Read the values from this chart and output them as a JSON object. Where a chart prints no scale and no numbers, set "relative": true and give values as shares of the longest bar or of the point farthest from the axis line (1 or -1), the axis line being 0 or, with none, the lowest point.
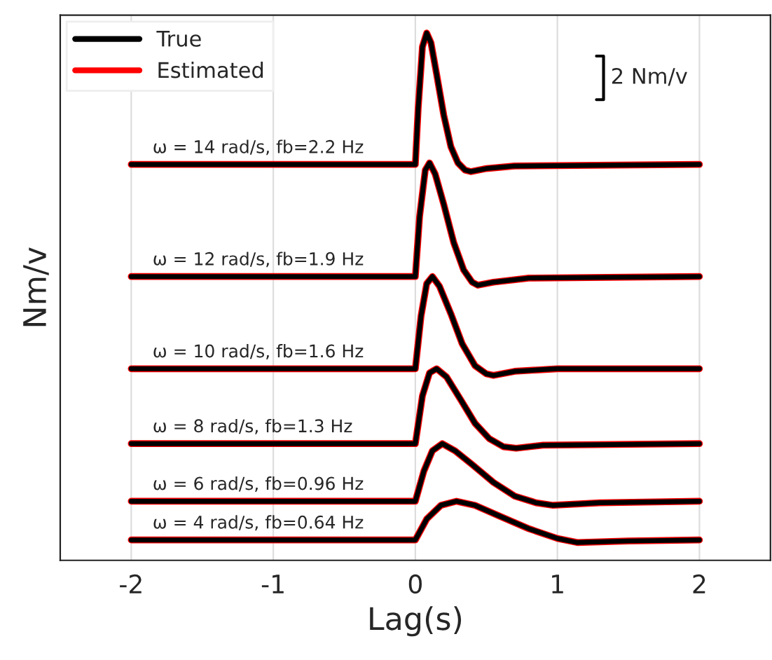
{
  "chart_data": {
    "type": "line",
    "xlabel": "Lag(s)",
    "ylabel": "Nm/v",
    "relative": true,
    "xlim": [
      -2.5,
      2.5
    ],
    "xticks": [
      -2,
      -1,
      0,
      1,
      2
    ],
    "grid": "x",
    "legend": "top left",
    "tick_labels": "x",
    "marker": "none",
    "line_style": "solid",
    "series": [
      {
        "name": "True",
        "color": "#000000",
        "x": [
          -2,
          0,
          0.02,
          0.05,
          0.08,
          0.11,
          0.15,
          0.2,
          0.25,
          0.3,
          0.35,
          0.39,
          0.5,
          0.7,
          2
        ],
        "values": [
          0.742,
          0.742,
          0.852,
          0.973,
          1.0,
          0.981,
          0.919,
          0.839,
          0.777,
          0.745,
          0.731,
          0.728,
          0.734,
          0.739,
          0.742
        ]
      },
      {
        "color": "#000000",
        "x": [
          -2,
          0,
          0.03,
          0.07,
          0.1,
          0.14,
          0.2,
          0.27,
          0.34,
          0.4,
          0.44,
          0.55,
          0.8,
          2
        ],
        "values": [
          0.522,
          0.522,
          0.64,
          0.731,
          0.745,
          0.723,
          0.664,
          0.589,
          0.535,
          0.511,
          0.505,
          0.511,
          0.519,
          0.522
        ]
      },
      {
        "color": "#000000",
        "x": [
          -2,
          0,
          0.04,
          0.08,
          0.12,
          0.17,
          0.25,
          0.33,
          0.42,
          0.5,
          0.55,
          0.7,
          1.0,
          2
        ],
        "values": [
          0.341,
          0.341,
          0.444,
          0.508,
          0.522,
          0.503,
          0.449,
          0.39,
          0.347,
          0.331,
          0.328,
          0.336,
          0.341,
          0.341
        ]
      },
      {
        "color": "#000000",
        "x": [
          -2,
          0,
          0.05,
          0.1,
          0.15,
          0.22,
          0.32,
          0.42,
          0.52,
          0.62,
          0.71,
          0.9,
          2
        ],
        "values": [
          0.194,
          0.194,
          0.288,
          0.333,
          0.341,
          0.325,
          0.28,
          0.234,
          0.204,
          0.188,
          0.185,
          0.191,
          0.194
        ]
      },
      {
        "color": "#000000",
        "x": [
          -2,
          0,
          0.06,
          0.12,
          0.19,
          0.28,
          0.4,
          0.55,
          0.7,
          0.85,
          0.97,
          1.3,
          2
        ],
        "values": [
          0.081,
          0.081,
          0.14,
          0.18,
          0.194,
          0.18,
          0.153,
          0.118,
          0.091,
          0.078,
          0.073,
          0.078,
          0.081
        ]
      },
      {
        "color": "#000000",
        "x": [
          -2,
          0,
          0.08,
          0.18,
          0.29,
          0.42,
          0.6,
          0.8,
          1.0,
          1.14,
          1.5,
          2
        ],
        "values": [
          0.005,
          0.005,
          0.046,
          0.073,
          0.081,
          0.073,
          0.051,
          0.027,
          0.008,
          0.0,
          0.003,
          0.005
        ]
      },
      {
        "name": "Estimated",
        "color": "#ff0000",
        "x": [
          -2,
          0,
          0.02,
          0.05,
          0.08,
          0.11,
          0.15,
          0.2,
          0.25,
          0.3,
          0.35,
          0.39,
          0.5,
          0.7,
          2
        ],
        "values": [
          0.742,
          0.742,
          0.852,
          0.973,
          1.0,
          0.981,
          0.919,
          0.839,
          0.777,
          0.745,
          0.731,
          0.728,
          0.734,
          0.739,
          0.742
        ]
      },
      {
        "color": "#ff0000",
        "x": [
          -2,
          0,
          0.03,
          0.07,
          0.1,
          0.14,
          0.2,
          0.27,
          0.34,
          0.4,
          0.44,
          0.55,
          0.8,
          2
        ],
        "values": [
          0.522,
          0.522,
          0.64,
          0.731,
          0.745,
          0.723,
          0.664,
          0.589,
          0.535,
          0.511,
          0.505,
          0.511,
          0.519,
          0.522
        ]
      },
      {
        "color": "#ff0000",
        "x": [
          -2,
          0,
          0.04,
          0.08,
          0.12,
          0.17,
          0.25,
          0.33,
          0.42,
          0.5,
          0.55,
          0.7,
          1.0,
          2
        ],
        "values": [
          0.341,
          0.341,
          0.444,
          0.508,
          0.522,
          0.503,
          0.449,
          0.39,
          0.347,
          0.331,
          0.328,
          0.336,
          0.341,
          0.341
        ]
      },
      {
        "color": "#ff0000",
        "x": [
          -2,
          0,
          0.05,
          0.1,
          0.15,
          0.22,
          0.32,
          0.42,
          0.52,
          0.62,
          0.71,
          0.9,
          2
        ],
        "values": [
          0.194,
          0.194,
          0.288,
          0.333,
          0.341,
          0.325,
          0.28,
          0.234,
          0.204,
          0.188,
          0.185,
          0.191,
          0.194
        ]
      },
      {
        "color": "#ff0000",
        "x": [
          -2,
          0,
          0.06,
          0.12,
          0.19,
          0.28,
          0.4,
          0.55,
          0.7,
          0.85,
          0.97,
          1.3,
          2
        ],
        "values": [
          0.081,
          0.081,
          0.14,
          0.18,
          0.194,
          0.18,
          0.153,
          0.118,
          0.091,
          0.078,
          0.073,
          0.078,
          0.081
        ]
      },
      {
        "color": "#ff0000",
        "x": [
          -2,
          0,
          0.08,
          0.18,
          0.29,
          0.42,
          0.6,
          0.8,
          1.0,
          1.14,
          1.5,
          2
        ],
        "values": [
          0.005,
          0.005,
          0.046,
          0.073,
          0.081,
          0.073,
          0.051,
          0.027,
          0.008,
          0.0,
          0.003,
          0.005
        ]
      }
    ],
    "annotations": [
      {
        "text": "ω = 14 rad/s, fb=2.2 Hz",
        "y": 0.742
      },
      {
        "text": "ω = 12 rad/s, fb=1.9 Hz",
        "y": 0.522
      },
      {
        "text": "ω = 10 rad/s, fb=1.6 Hz",
        "y": 0.341
      },
      {
        "text": "ω = 8 rad/s, fb=1.3 Hz",
        "y": 0.194
      },
      {
        "text": "ω = 6 rad/s, fb=0.96 Hz",
        "y": 0.081
      },
      {
        "text": "ω = 4 rad/s, fb=0.64 Hz",
        "y": 0.005
      },
      "2 Nm/v"
    ]
  }
}
